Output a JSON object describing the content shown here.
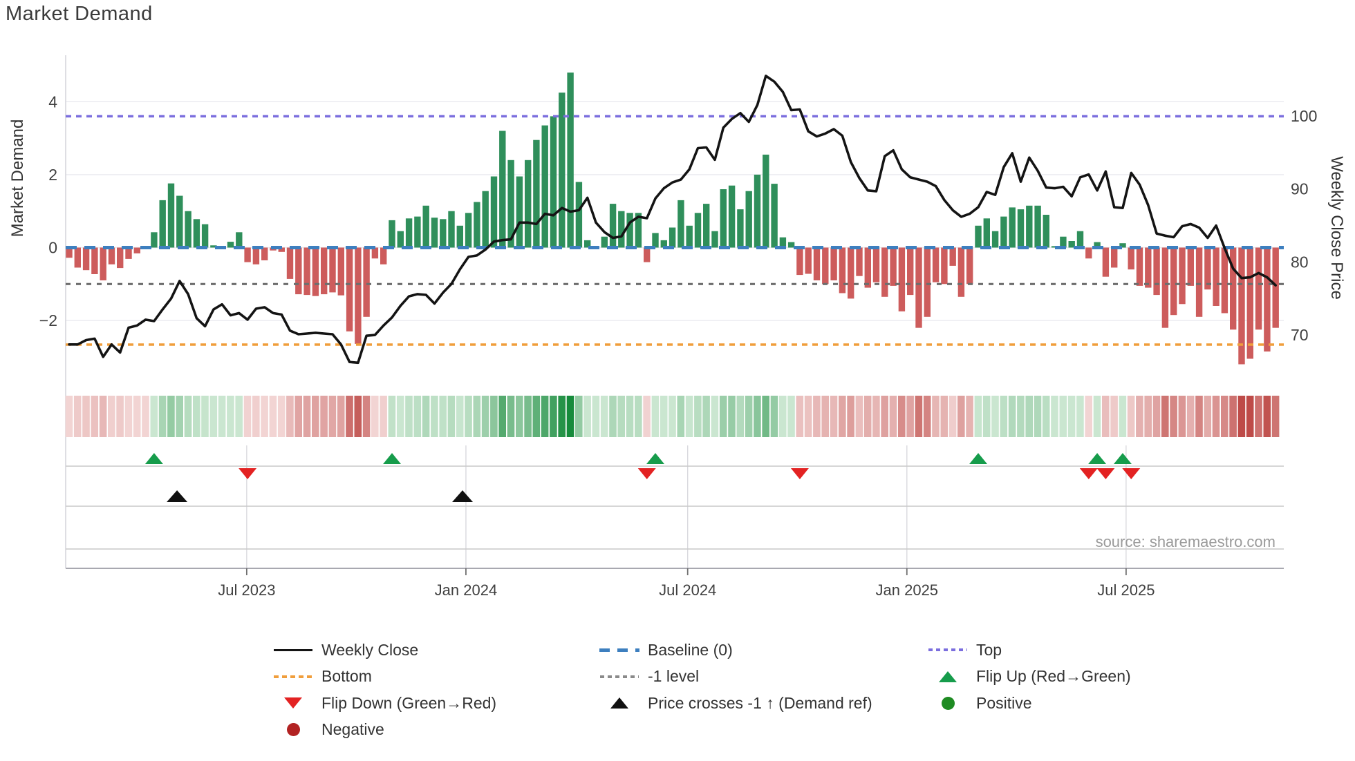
{
  "title": "Market Demand",
  "source_text": "source: sharemaestro.com",
  "axes": {
    "y_left_label": "Market Demand",
    "y_right_label": "Weekly Close Price",
    "y_left_ticks": [
      4,
      2,
      0,
      -2
    ],
    "y_right_ticks": [
      100,
      90,
      80,
      70
    ],
    "x_ticks": [
      {
        "label": "Jul 2023",
        "i": 20.9
      },
      {
        "label": "Jan 2024",
        "i": 46.7
      },
      {
        "label": "Jul 2024",
        "i": 72.8
      },
      {
        "label": "Jan 2025",
        "i": 98.6
      },
      {
        "label": "Jul 2025",
        "i": 124.4
      }
    ]
  },
  "colors": {
    "bar_positive": "#2f8f5b",
    "bar_negative": "#cd5c5c",
    "price_line": "#141414",
    "baseline": "#3d7fbf",
    "top_line": "#7b6ede",
    "bottom_line": "#f09e3c",
    "minus_one_line": "#6e6e6e",
    "flip_up": "#169c4b",
    "flip_down": "#e32222",
    "price_cross": "#111111",
    "positive_dot": "#1e8b22",
    "negative_dot": "#b22222",
    "grid": "#ebebf0",
    "spine": "#c9c9cf"
  },
  "chart_data": {
    "type": "bar+line",
    "title": "Market Demand",
    "xlabel": "",
    "ylabel_left": "Market Demand",
    "ylabel_right": "Weekly Close Price",
    "ylim_left": [
      -3.6,
      5.4
    ],
    "ylim_right": [
      64,
      106.5
    ],
    "n_weeks": 143,
    "ref_lines": {
      "baseline": 0,
      "top": 3.6,
      "bottom": -2.66,
      "minus_one": -1
    },
    "demand": [
      -0.28,
      -0.55,
      -0.62,
      -0.73,
      -0.9,
      -0.46,
      -0.56,
      -0.31,
      -0.16,
      -0.03,
      0.42,
      1.3,
      1.76,
      1.42,
      1.0,
      0.78,
      0.64,
      0.06,
      0.03,
      0.16,
      0.42,
      -0.4,
      -0.46,
      -0.35,
      -0.08,
      -0.12,
      -0.86,
      -1.28,
      -1.3,
      -1.33,
      -1.28,
      -1.23,
      -1.31,
      -2.3,
      -2.64,
      -1.9,
      -0.3,
      -0.46,
      0.75,
      0.45,
      0.8,
      0.85,
      1.15,
      0.82,
      0.78,
      1.0,
      0.6,
      0.95,
      1.25,
      1.55,
      1.95,
      3.2,
      2.4,
      1.95,
      2.4,
      2.95,
      3.35,
      3.6,
      4.25,
      4.8,
      1.8,
      0.2,
      0.04,
      0.3,
      1.2,
      1.0,
      0.95,
      0.95,
      -0.4,
      0.4,
      0.2,
      0.55,
      1.3,
      0.6,
      0.95,
      1.2,
      0.45,
      1.6,
      1.7,
      1.05,
      1.55,
      2.0,
      2.55,
      1.75,
      0.28,
      0.15,
      -0.75,
      -0.72,
      -0.9,
      -1.0,
      -0.9,
      -1.25,
      -1.4,
      -0.78,
      -1.1,
      -0.95,
      -1.35,
      -1.05,
      -1.75,
      -1.3,
      -2.2,
      -1.9,
      -0.95,
      -1.0,
      -0.5,
      -1.35,
      -1.0,
      0.6,
      0.8,
      0.45,
      0.85,
      1.1,
      1.05,
      1.15,
      1.15,
      0.9,
      0.04,
      0.3,
      0.18,
      0.45,
      -0.3,
      0.15,
      -0.8,
      -0.55,
      0.12,
      -0.6,
      -1.05,
      -1.1,
      -1.3,
      -2.2,
      -1.85,
      -1.55,
      -1.05,
      -1.9,
      -1.15,
      -1.6,
      -1.8,
      -2.25,
      -3.2,
      -3.05,
      -2.25,
      -2.85,
      -2.2
    ],
    "price": [
      68.7,
      68.7,
      69.3,
      69.5,
      67.0,
      68.7,
      67.6,
      71.0,
      71.3,
      72.1,
      71.9,
      73.5,
      75.0,
      77.4,
      75.6,
      72.3,
      71.2,
      73.5,
      74.2,
      72.7,
      73.0,
      72.1,
      73.6,
      73.8,
      73.0,
      72.8,
      70.6,
      70.1,
      70.2,
      70.3,
      70.2,
      70.1,
      68.7,
      66.3,
      66.2,
      69.9,
      70.0,
      71.3,
      72.4,
      74.0,
      75.3,
      75.6,
      75.5,
      74.3,
      75.8,
      77.0,
      79.0,
      80.7,
      80.9,
      81.7,
      82.8,
      83.0,
      83.1,
      85.4,
      85.4,
      85.2,
      86.6,
      86.4,
      87.4,
      86.9,
      87.1,
      88.8,
      85.4,
      84.1,
      83.3,
      83.5,
      85.4,
      86.2,
      86.0,
      88.7,
      90.1,
      90.9,
      91.3,
      92.7,
      95.6,
      95.7,
      94.0,
      98.4,
      99.6,
      100.4,
      99.2,
      101.5,
      105.5,
      104.7,
      103.3,
      100.8,
      100.9,
      97.9,
      97.2,
      97.6,
      98.2,
      97.3,
      93.7,
      91.5,
      89.8,
      89.7,
      94.5,
      95.3,
      92.7,
      91.6,
      91.3,
      91.0,
      90.4,
      88.5,
      87.1,
      86.2,
      86.6,
      87.5,
      89.6,
      89.2,
      93.0,
      94.9,
      91.0,
      94.3,
      92.5,
      90.2,
      90.1,
      90.3,
      89.0,
      91.6,
      92.0,
      89.8,
      92.4,
      87.5,
      87.4,
      92.2,
      90.6,
      87.8,
      83.9,
      83.6,
      83.4,
      84.9,
      85.2,
      84.7,
      83.3,
      85.0,
      81.9,
      79.1,
      77.8,
      77.9,
      78.5,
      77.9,
      76.8
    ],
    "markers": {
      "flip_up": [
        10,
        38,
        69,
        107,
        121,
        124
      ],
      "flip_down": [
        21,
        68,
        86,
        120,
        122,
        125
      ],
      "price_cross_up": [
        12.7,
        46.3
      ]
    },
    "legend_position": "bottom",
    "grid": true
  },
  "legend": {
    "columns": [
      {
        "items": [
          {
            "swatch": "line-black",
            "label": "Weekly Close"
          },
          {
            "swatch": "dash-orange",
            "label": "Bottom"
          },
          {
            "swatch": "tri-down-red",
            "label": "Flip Down (Green→Red)"
          },
          {
            "swatch": "dot-darkred",
            "label": "Negative"
          }
        ]
      },
      {
        "items": [
          {
            "swatch": "dash-blue",
            "label": "Baseline (0)"
          },
          {
            "swatch": "dash-gray",
            "label": "-1 level"
          },
          {
            "swatch": "tri-up-black",
            "label": "Price crosses -1 ↑ (Demand ref)"
          }
        ]
      },
      {
        "items": [
          {
            "swatch": "dash-purple",
            "label": "Top"
          },
          {
            "swatch": "tri-up-green",
            "label": "Flip Up (Red→Green)"
          },
          {
            "swatch": "dot-green",
            "label": "Positive"
          }
        ]
      }
    ]
  }
}
